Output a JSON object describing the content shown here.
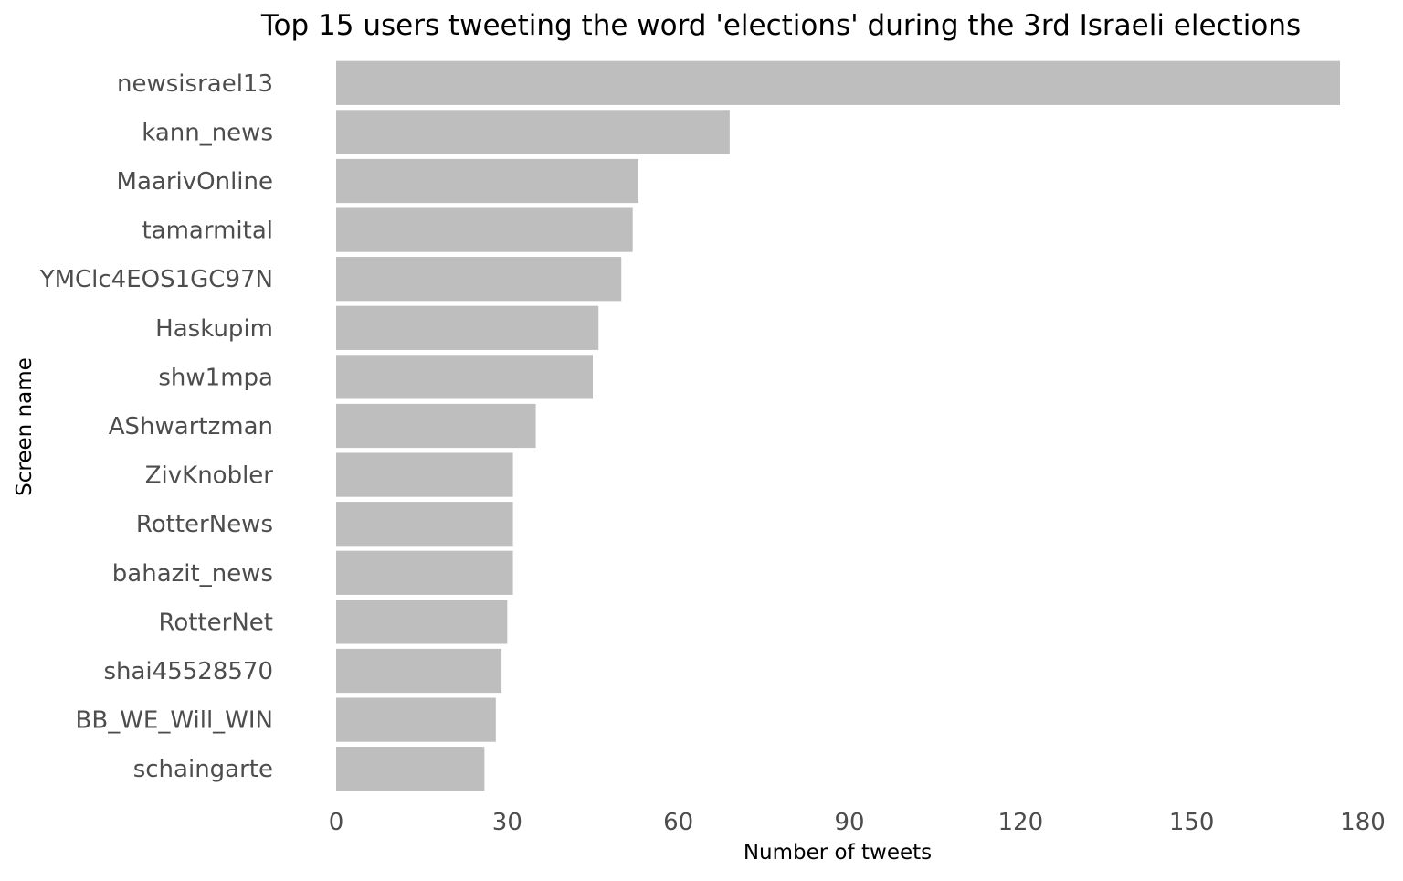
{
  "chart_data": {
    "type": "bar",
    "orientation": "horizontal",
    "title": "Top 15 users tweeting the word 'elections' during the 3rd Israeli elections",
    "xlabel": "Number of tweets",
    "ylabel": "Screen name",
    "xlim": [
      0,
      180
    ],
    "xticks": [
      0,
      30,
      60,
      90,
      120,
      150,
      180
    ],
    "grid": false,
    "legend": "none",
    "bar_color": "#bebebe",
    "categories": [
      "newsisrael13",
      "kann_news",
      "MaarivOnline",
      "tamarmital",
      "YMClc4EOS1GC97N",
      "Haskupim",
      "shw1mpa",
      "AShwartzman",
      "ZivKnobler",
      "RotterNews",
      "bahazit_news",
      "RotterNet",
      "shai45528570",
      "BB_WE_Will_WIN",
      "schaingarte"
    ],
    "values": [
      176,
      69,
      53,
      52,
      50,
      46,
      45,
      35,
      31,
      31,
      31,
      30,
      29,
      28,
      26
    ]
  }
}
